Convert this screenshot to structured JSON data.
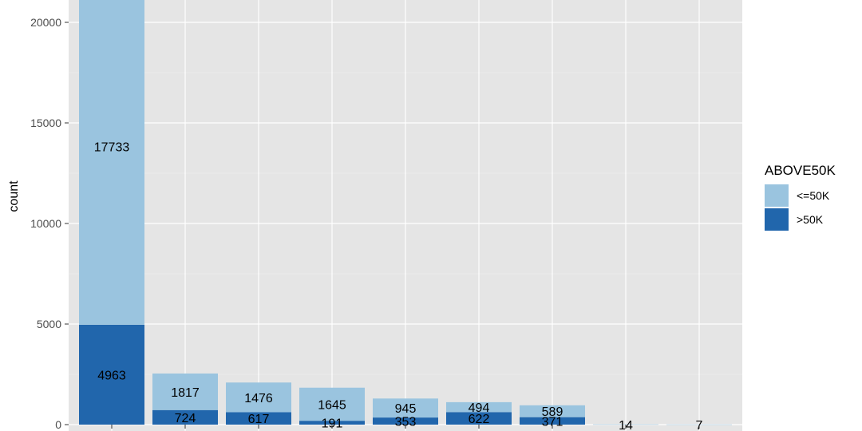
{
  "chart_data": {
    "type": "bar",
    "stacked": true,
    "categories": [
      "",
      "",
      "",
      "",
      "",
      "",
      "",
      "",
      ""
    ],
    "series": [
      {
        "name": ">50K",
        "color": "#2166ac",
        "values": [
          4963,
          724,
          617,
          191,
          353,
          622,
          371,
          0,
          0
        ]
      },
      {
        "name": "<=50K",
        "color": "#9ac4df",
        "values": [
          17733,
          1817,
          1476,
          1645,
          945,
          494,
          589,
          14,
          7
        ]
      }
    ],
    "ylabel": "count",
    "xlabel": "",
    "yticks": [
      0,
      5000,
      10000,
      15000,
      20000
    ],
    "ylim": [
      0,
      21000
    ],
    "grid": true,
    "legend": {
      "title": "ABOVE50K",
      "position": "right",
      "entries": [
        "<=50K",
        ">50K"
      ]
    }
  }
}
